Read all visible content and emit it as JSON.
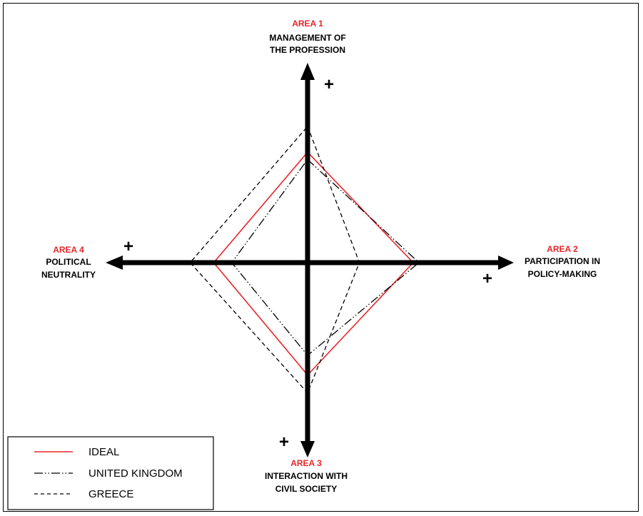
{
  "areas": {
    "top": {
      "title": "AREA 1",
      "line1": "MANAGEMENT OF",
      "line2": "THE PROFESSION",
      "plus": "+"
    },
    "right": {
      "title": "AREA 2",
      "line1": "PARTICIPATION IN",
      "line2": "POLICY-MAKING",
      "plus": "+"
    },
    "bottom": {
      "title": "AREA 3",
      "line1": "INTERACTION WITH",
      "line2": "CIVIL SOCIETY",
      "plus": "+"
    },
    "left": {
      "title": "AREA 4",
      "line1": "POLITICAL",
      "line2": "NEUTRALITY",
      "plus": "+"
    }
  },
  "legend": {
    "items": [
      {
        "label": "IDEAL",
        "color": "#e8262a",
        "style": "solid"
      },
      {
        "label": "UNITED KINGDOM",
        "color": "#000000",
        "style": "dash-dot-dot"
      },
      {
        "label": "GREECE",
        "color": "#000000",
        "style": "dashed"
      }
    ]
  },
  "chart_data": {
    "type": "radar",
    "axes": [
      "AREA 1",
      "AREA 2",
      "AREA 3",
      "AREA 4"
    ],
    "axis_order_clockwise_from_top": [
      "AREA 1",
      "AREA 2",
      "AREA 3",
      "AREA 4"
    ],
    "scale_max": 1.0,
    "series": [
      {
        "name": "IDEAL",
        "values": [
          0.6,
          0.55,
          0.63,
          0.52
        ],
        "color": "#e8262a",
        "style": "solid"
      },
      {
        "name": "UNITED KINGDOM",
        "values": [
          0.56,
          0.58,
          0.52,
          0.42
        ],
        "color": "#000000",
        "style": "dash-dot-dot"
      },
      {
        "name": "GREECE",
        "values": [
          0.74,
          0.27,
          0.73,
          0.65
        ],
        "color": "#000000",
        "style": "dashed"
      }
    ]
  }
}
